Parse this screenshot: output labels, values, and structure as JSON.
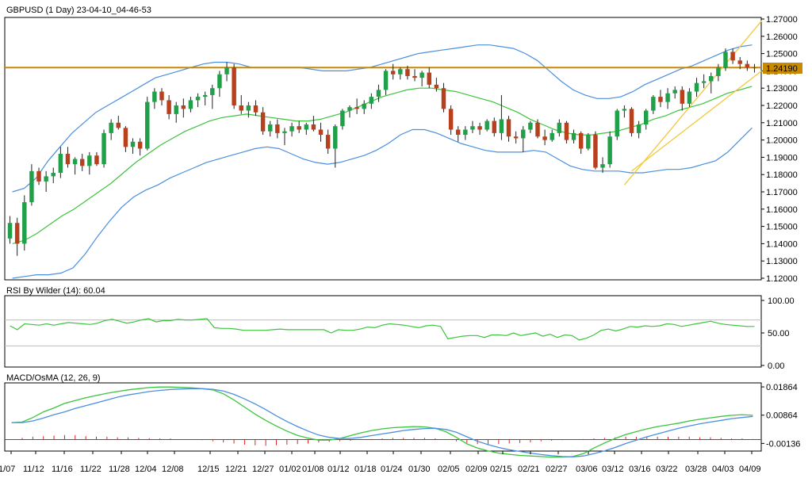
{
  "chart_data": [
    {
      "type": "candlestick",
      "title": "GBPUSD (1 Day) 23-04-10_04-46-53",
      "ylim": [
        1.12,
        1.27
      ],
      "y_ticks": [
        "1.12000",
        "1.13000",
        "1.14000",
        "1.15000",
        "1.16000",
        "1.17000",
        "1.18000",
        "1.19000",
        "1.20000",
        "1.21000",
        "1.22000",
        "1.23000",
        "1.24000",
        "1.25000",
        "1.26000",
        "1.27000"
      ],
      "last_price_label": "1.24190",
      "horizontal_level": 1.2419,
      "colors": {
        "bull": "#21a04a",
        "bear": "#b8401c",
        "bollinger": "#4a8fe0",
        "middle_band": "#3cc43c",
        "level": "#c88a00",
        "channel": "#f2c83a"
      },
      "candles_ohlc": [
        [
          1.143,
          1.156,
          1.14,
          1.152
        ],
        [
          1.152,
          1.155,
          1.133,
          1.14
        ],
        [
          1.14,
          1.168,
          1.136,
          1.164
        ],
        [
          1.164,
          1.186,
          1.162,
          1.182
        ],
        [
          1.182,
          1.184,
          1.174,
          1.176
        ],
        [
          1.176,
          1.182,
          1.17,
          1.179
        ],
        [
          1.179,
          1.184,
          1.175,
          1.181
        ],
        [
          1.181,
          1.196,
          1.178,
          1.192
        ],
        [
          1.192,
          1.196,
          1.184,
          1.186
        ],
        [
          1.186,
          1.19,
          1.18,
          1.189
        ],
        [
          1.189,
          1.192,
          1.182,
          1.185
        ],
        [
          1.185,
          1.193,
          1.18,
          1.191
        ],
        [
          1.191,
          1.193,
          1.185,
          1.186
        ],
        [
          1.186,
          1.206,
          1.184,
          1.204
        ],
        [
          1.204,
          1.212,
          1.2,
          1.21
        ],
        [
          1.21,
          1.214,
          1.206,
          1.207
        ],
        [
          1.207,
          1.208,
          1.193,
          1.196
        ],
        [
          1.196,
          1.201,
          1.192,
          1.199
        ],
        [
          1.199,
          1.201,
          1.191,
          1.195
        ],
        [
          1.195,
          1.225,
          1.194,
          1.222
        ],
        [
          1.222,
          1.23,
          1.218,
          1.228
        ],
        [
          1.228,
          1.23,
          1.22,
          1.223
        ],
        [
          1.223,
          1.226,
          1.212,
          1.215
        ],
        [
          1.215,
          1.222,
          1.21,
          1.22
        ],
        [
          1.22,
          1.224,
          1.213,
          1.218
        ],
        [
          1.218,
          1.225,
          1.216,
          1.223
        ],
        [
          1.223,
          1.227,
          1.219,
          1.225
        ],
        [
          1.225,
          1.228,
          1.22,
          1.226
        ],
        [
          1.226,
          1.232,
          1.218,
          1.23
        ],
        [
          1.23,
          1.24,
          1.225,
          1.238
        ],
        [
          1.238,
          1.245,
          1.234,
          1.242
        ],
        [
          1.242,
          1.244,
          1.218,
          1.22
        ],
        [
          1.22,
          1.226,
          1.215,
          1.217
        ],
        [
          1.217,
          1.222,
          1.213,
          1.22
        ],
        [
          1.22,
          1.223,
          1.214,
          1.216
        ],
        [
          1.216,
          1.219,
          1.203,
          1.205
        ],
        [
          1.205,
          1.211,
          1.202,
          1.209
        ],
        [
          1.209,
          1.212,
          1.201,
          1.204
        ],
        [
          1.204,
          1.207,
          1.197,
          1.205
        ],
        [
          1.205,
          1.21,
          1.202,
          1.208
        ],
        [
          1.208,
          1.211,
          1.204,
          1.206
        ],
        [
          1.206,
          1.21,
          1.203,
          1.209
        ],
        [
          1.209,
          1.214,
          1.205,
          1.206
        ],
        [
          1.206,
          1.21,
          1.199,
          1.203
        ],
        [
          1.203,
          1.206,
          1.192,
          1.195
        ],
        [
          1.195,
          1.209,
          1.184,
          1.208
        ],
        [
          1.208,
          1.218,
          1.206,
          1.217
        ],
        [
          1.217,
          1.22,
          1.213,
          1.219
        ],
        [
          1.219,
          1.224,
          1.215,
          1.218
        ],
        [
          1.218,
          1.223,
          1.215,
          1.221
        ],
        [
          1.221,
          1.227,
          1.218,
          1.225
        ],
        [
          1.225,
          1.232,
          1.222,
          1.229
        ],
        [
          1.229,
          1.241,
          1.226,
          1.24
        ],
        [
          1.24,
          1.244,
          1.235,
          1.238
        ],
        [
          1.238,
          1.242,
          1.235,
          1.241
        ],
        [
          1.241,
          1.243,
          1.235,
          1.237
        ],
        [
          1.237,
          1.241,
          1.234,
          1.236
        ],
        [
          1.236,
          1.24,
          1.231,
          1.239
        ],
        [
          1.239,
          1.242,
          1.23,
          1.232
        ],
        [
          1.232,
          1.236,
          1.228,
          1.23
        ],
        [
          1.23,
          1.233,
          1.216,
          1.218
        ],
        [
          1.218,
          1.22,
          1.203,
          1.206
        ],
        [
          1.206,
          1.208,
          1.199,
          1.203
        ],
        [
          1.203,
          1.208,
          1.2,
          1.206
        ],
        [
          1.206,
          1.211,
          1.204,
          1.208
        ],
        [
          1.208,
          1.21,
          1.203,
          1.206
        ],
        [
          1.206,
          1.212,
          1.205,
          1.211
        ],
        [
          1.211,
          1.213,
          1.202,
          1.204
        ],
        [
          1.204,
          1.226,
          1.2,
          1.212
        ],
        [
          1.212,
          1.214,
          1.199,
          1.202
        ],
        [
          1.202,
          1.205,
          1.198,
          1.201
        ],
        [
          1.201,
          1.208,
          1.193,
          1.206
        ],
        [
          1.206,
          1.211,
          1.204,
          1.21
        ],
        [
          1.21,
          1.212,
          1.201,
          1.202
        ],
        [
          1.202,
          1.206,
          1.197,
          1.2
        ],
        [
          1.2,
          1.206,
          1.199,
          1.204
        ],
        [
          1.204,
          1.212,
          1.202,
          1.21
        ],
        [
          1.21,
          1.211,
          1.198,
          1.2
        ],
        [
          1.2,
          1.206,
          1.198,
          1.204
        ],
        [
          1.204,
          1.205,
          1.192,
          1.195
        ],
        [
          1.195,
          1.204,
          1.194,
          1.203
        ],
        [
          1.203,
          1.205,
          1.183,
          1.184
        ],
        [
          1.184,
          1.19,
          1.181,
          1.186
        ],
        [
          1.186,
          1.205,
          1.184,
          1.202
        ],
        [
          1.202,
          1.218,
          1.2,
          1.217
        ],
        [
          1.217,
          1.22,
          1.213,
          1.218
        ],
        [
          1.218,
          1.219,
          1.202,
          1.204
        ],
        [
          1.204,
          1.211,
          1.201,
          1.209
        ],
        [
          1.209,
          1.218,
          1.206,
          1.217
        ],
        [
          1.217,
          1.226,
          1.215,
          1.225
        ],
        [
          1.225,
          1.229,
          1.219,
          1.222
        ],
        [
          1.222,
          1.23,
          1.218,
          1.227
        ],
        [
          1.227,
          1.231,
          1.224,
          1.229
        ],
        [
          1.229,
          1.231,
          1.217,
          1.221
        ],
        [
          1.221,
          1.23,
          1.219,
          1.228
        ],
        [
          1.228,
          1.236,
          1.225,
          1.233
        ],
        [
          1.233,
          1.238,
          1.23,
          1.234
        ],
        [
          1.234,
          1.239,
          1.227,
          1.237
        ],
        [
          1.237,
          1.244,
          1.234,
          1.242
        ],
        [
          1.242,
          1.253,
          1.24,
          1.251
        ],
        [
          1.251,
          1.253,
          1.244,
          1.246
        ],
        [
          1.246,
          1.248,
          1.241,
          1.244
        ],
        [
          1.244,
          1.246,
          1.24,
          1.242
        ],
        [
          1.242,
          1.244,
          1.239,
          1.2419
        ]
      ],
      "bollinger_upper": [
        1.17,
        1.172,
        1.178,
        1.188,
        1.196,
        1.204,
        1.21,
        1.216,
        1.22,
        1.224,
        1.228,
        1.232,
        1.236,
        1.238,
        1.24,
        1.242,
        1.244,
        1.245,
        1.245,
        1.244,
        1.242,
        1.242,
        1.242,
        1.242,
        1.242,
        1.241,
        1.24,
        1.24,
        1.24,
        1.241,
        1.242,
        1.244,
        1.246,
        1.248,
        1.25,
        1.251,
        1.252,
        1.253,
        1.254,
        1.255,
        1.255,
        1.254,
        1.253,
        1.25,
        1.246,
        1.24,
        1.234,
        1.229,
        1.226,
        1.224,
        1.224,
        1.225,
        1.228,
        1.232,
        1.235,
        1.238,
        1.241,
        1.243,
        1.246,
        1.249,
        1.252,
        1.254,
        1.255
      ],
      "bollinger_middle": [
        1.14,
        1.142,
        1.146,
        1.151,
        1.156,
        1.16,
        1.165,
        1.17,
        1.175,
        1.181,
        1.187,
        1.192,
        1.197,
        1.201,
        1.205,
        1.208,
        1.211,
        1.213,
        1.214,
        1.215,
        1.214,
        1.213,
        1.212,
        1.211,
        1.211,
        1.212,
        1.214,
        1.216,
        1.219,
        1.222,
        1.225,
        1.227,
        1.229,
        1.23,
        1.23,
        1.229,
        1.228,
        1.226,
        1.224,
        1.222,
        1.219,
        1.216,
        1.212,
        1.209,
        1.206,
        1.204,
        1.203,
        1.203,
        1.204,
        1.205,
        1.207,
        1.209,
        1.212,
        1.214,
        1.217,
        1.219,
        1.221,
        1.224,
        1.227,
        1.229,
        1.231
      ],
      "bollinger_lower": [
        1.12,
        1.121,
        1.122,
        1.122,
        1.123,
        1.126,
        1.134,
        1.144,
        1.153,
        1.161,
        1.167,
        1.171,
        1.174,
        1.178,
        1.181,
        1.184,
        1.187,
        1.189,
        1.191,
        1.193,
        1.195,
        1.196,
        1.195,
        1.192,
        1.189,
        1.187,
        1.186,
        1.187,
        1.189,
        1.191,
        1.194,
        1.198,
        1.203,
        1.206,
        1.206,
        1.204,
        1.201,
        1.198,
        1.196,
        1.194,
        1.193,
        1.193,
        1.193,
        1.194,
        1.193,
        1.189,
        1.185,
        1.183,
        1.182,
        1.182,
        1.182,
        1.181,
        1.181,
        1.182,
        1.183,
        1.183,
        1.184,
        1.186,
        1.188,
        1.193,
        1.2,
        1.207
      ]
    },
    {
      "type": "line",
      "title": "RSI By Wilder (14): 60.04",
      "ylim": [
        0,
        100
      ],
      "y_ticks": [
        "100.00",
        "50.00",
        "0.00"
      ],
      "levels": [
        70,
        30
      ],
      "values": [
        61,
        55,
        64,
        63,
        62,
        64,
        62,
        64,
        66,
        65,
        64,
        63,
        65,
        69,
        71,
        68,
        65,
        67,
        70,
        72,
        67,
        69,
        69,
        71,
        70,
        70,
        71,
        72,
        58,
        57,
        57,
        56,
        54,
        54,
        54,
        54,
        55,
        56,
        55,
        55,
        55,
        55,
        55,
        55,
        50,
        55,
        54,
        54,
        56,
        59,
        58,
        62,
        64,
        63,
        62,
        60,
        58,
        61,
        62,
        60,
        41,
        43,
        45,
        46,
        46,
        43,
        47,
        47,
        46,
        50,
        46,
        48,
        50,
        45,
        48,
        43,
        47,
        46,
        39,
        42,
        47,
        54,
        56,
        53,
        56,
        60,
        59,
        61,
        60,
        61,
        64,
        63,
        60,
        62,
        64,
        66,
        68,
        65,
        63,
        62,
        61,
        60,
        60
      ]
    },
    {
      "type": "line",
      "title": "MACD/OsMA (12, 26, 9)",
      "ylim": [
        -0.0035,
        0.0195
      ],
      "y_ticks": [
        "0.01864",
        "0.00864",
        "-0.00136"
      ],
      "series": [
        {
          "values": [
            0.006,
            0.0062,
            0.0078,
            0.0098,
            0.0112,
            0.0128,
            0.0138,
            0.0148,
            0.0156,
            0.0164,
            0.017,
            0.0176,
            0.018,
            0.0184,
            0.0186,
            0.0186,
            0.0185,
            0.0183,
            0.018,
            0.0176,
            0.0162,
            0.014,
            0.0115,
            0.009,
            0.0068,
            0.0048,
            0.003,
            0.0015,
            0.0005,
            -0.0002,
            -0.0002,
            0.0004,
            0.0014,
            0.0024,
            0.0032,
            0.0038,
            0.0042,
            0.0044,
            0.0046,
            0.0045,
            0.004,
            0.0028,
            0.0008,
            -0.0015,
            -0.003,
            -0.004,
            -0.0048,
            -0.0052,
            -0.0056,
            -0.0058,
            -0.006,
            -0.0062,
            -0.0062,
            -0.006,
            -0.005,
            -0.003,
            -0.0012,
            0.0004,
            0.0018,
            0.0028,
            0.0038,
            0.0046,
            0.0052,
            0.0058,
            0.0066,
            0.0072,
            0.0077,
            0.0082,
            0.0086,
            0.0088,
            0.0086
          ]
        },
        {
          "values": [
            0.006,
            0.006,
            0.0066,
            0.0076,
            0.0088,
            0.0098,
            0.011,
            0.012,
            0.013,
            0.014,
            0.015,
            0.0158,
            0.0164,
            0.017,
            0.0174,
            0.0177,
            0.0179,
            0.018,
            0.018,
            0.0178,
            0.0172,
            0.016,
            0.0144,
            0.0126,
            0.0106,
            0.0084,
            0.0064,
            0.0046,
            0.003,
            0.0016,
            0.0008,
            0.0004,
            0.0004,
            0.0008,
            0.0014,
            0.002,
            0.0026,
            0.0032,
            0.0036,
            0.0039,
            0.004,
            0.0036,
            0.0026,
            0.001,
            -0.0006,
            -0.0018,
            -0.0028,
            -0.0036,
            -0.0042,
            -0.0048,
            -0.0053,
            -0.0057,
            -0.006,
            -0.0061,
            -0.0058,
            -0.005,
            -0.004,
            -0.0028,
            -0.0014,
            -0.0002,
            0.001,
            0.002,
            0.003,
            0.004,
            0.0048,
            0.0056,
            0.0062,
            0.0068,
            0.0074,
            0.0078,
            0.0082
          ]
        }
      ],
      "histogram": [
        0.0,
        0.0006,
        0.001,
        0.0012,
        0.0014,
        0.0016,
        0.0016,
        0.0012,
        0.001,
        0.001,
        0.0008,
        0.0008,
        0.0006,
        0.0005,
        0.0004,
        0.0004,
        0.0,
        0.0,
        -0.0002,
        -0.0006,
        -0.001,
        -0.0014,
        -0.0018,
        -0.002,
        -0.0022,
        -0.002,
        -0.0018,
        -0.0016,
        -0.0014,
        -0.001,
        -0.0008,
        -0.0006,
        -0.0004,
        0.0,
        0.0002,
        0.0004,
        0.0006,
        0.0006,
        0.0006,
        0.0006,
        0.0004,
        0.0,
        -0.0006,
        -0.0012,
        -0.0016,
        -0.0018,
        -0.0016,
        -0.0014,
        -0.0012,
        -0.001,
        -0.0006,
        -0.0004,
        -0.0002,
        0.0,
        0.0002,
        0.0004,
        0.0006,
        0.0008,
        0.001,
        0.001,
        0.001,
        0.001,
        0.001,
        0.001,
        0.001,
        0.0008,
        0.0008,
        0.0006,
        0.0004,
        0.0004,
        0.0002
      ]
    }
  ],
  "x_labels": [
    "1/07",
    "11/12",
    "11/16",
    "11/22",
    "11/28",
    "12/04",
    "12/08",
    "12/15",
    "12/21",
    "12/27",
    "01/02",
    "01/08",
    "01/12",
    "01/18",
    "01/24",
    "01/30",
    "02/05",
    "02/09",
    "02/15",
    "02/21",
    "02/27",
    "03/06",
    "03/12",
    "03/16",
    "03/22",
    "03/28",
    "04/03",
    "04/09"
  ]
}
